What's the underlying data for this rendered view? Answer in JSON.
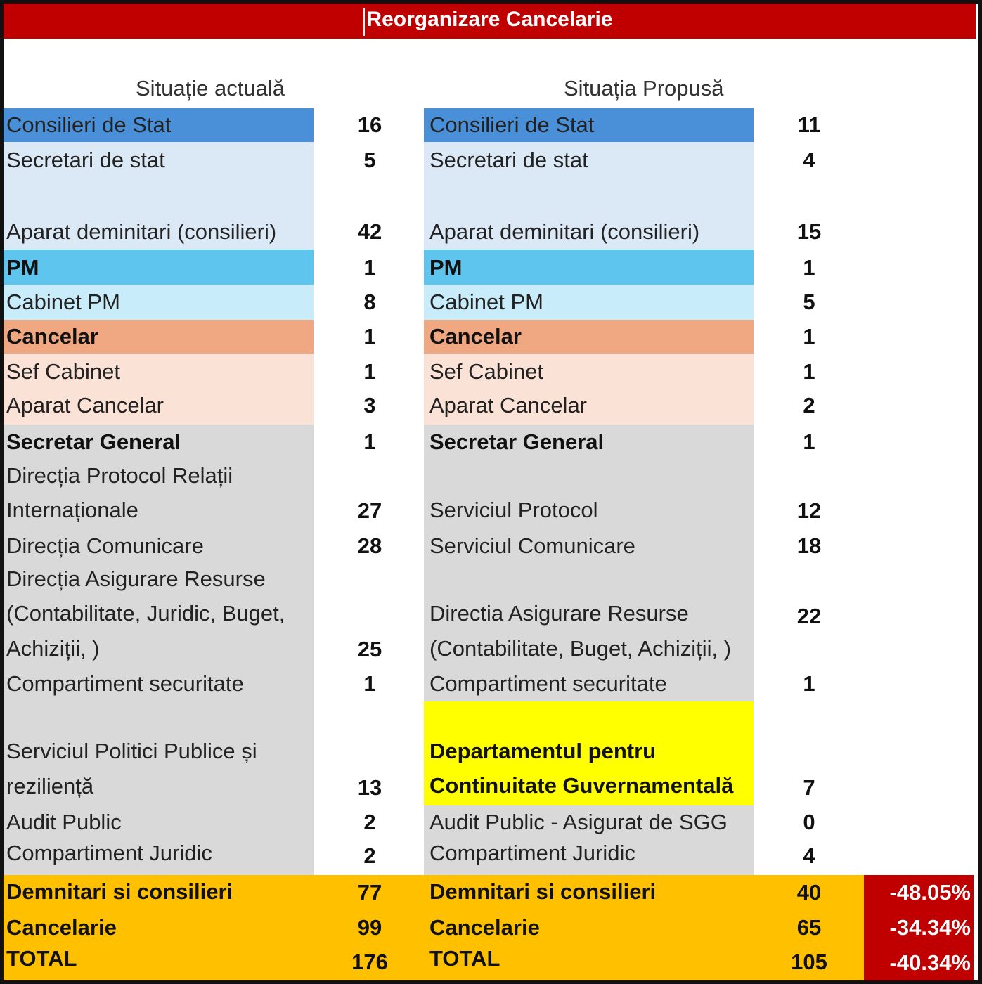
{
  "title": "Reorganizare Cancelarie",
  "headers": {
    "current": "Situație actuală",
    "proposed": "Situația Propusă"
  },
  "colors": {
    "title_bar": "#c00000",
    "consilieri_de_stat": "#4a90d9",
    "light_blue": "#dbe8f6",
    "pm": "#5ec5ef",
    "cabinet_pm": "#c8ecfa",
    "cancelar": "#f0a882",
    "light_peach": "#fbe2d6",
    "grey": "#d9d9d9",
    "highlight_yellow": "#ffff00",
    "totals_orange": "#ffc000",
    "percent_red": "#c00000"
  },
  "rows": {
    "consilieri_de_stat": {
      "label_current": "Consilieri de Stat",
      "value_current": "16",
      "label_proposed": "Consilieri de Stat",
      "value_proposed": "11"
    },
    "secretari_de_stat": {
      "label_current": "Secretari de stat",
      "value_current": "5",
      "label_proposed": "Secretari de stat",
      "value_proposed": "4"
    },
    "aparat_demnitari": {
      "label_current": "Aparat deminitari (consilieri)",
      "value_current": "42",
      "label_proposed": "Aparat deminitari (consilieri)",
      "value_proposed": "15"
    },
    "pm": {
      "label_current": "PM",
      "value_current": "1",
      "label_proposed": "PM",
      "value_proposed": "1"
    },
    "cabinet_pm": {
      "label_current": "Cabinet PM",
      "value_current": "8",
      "label_proposed": "Cabinet PM",
      "value_proposed": "5"
    },
    "cancelar": {
      "label_current": "Cancelar",
      "value_current": "1",
      "label_proposed": "Cancelar",
      "value_proposed": "1"
    },
    "sef_cabinet": {
      "label_current": "Sef Cabinet",
      "value_current": "1",
      "label_proposed": "Sef Cabinet",
      "value_proposed": "1"
    },
    "aparat_cancelar": {
      "label_current": "Aparat Cancelar",
      "value_current": "3",
      "label_proposed": "Aparat Cancelar",
      "value_proposed": "2"
    },
    "secretar_general": {
      "label_current": "Secretar General",
      "value_current": "1",
      "label_proposed": "Secretar General",
      "value_proposed": "1"
    },
    "protocol": {
      "label_current_1": "Direcția Protocol Relații",
      "label_current_2": "Internaționale",
      "value_current": "27",
      "label_proposed": "Serviciul Protocol",
      "value_proposed": "12"
    },
    "comunicare": {
      "label_current": "Direcția Comunicare",
      "value_current": "28",
      "label_proposed": "Serviciul Comunicare",
      "value_proposed": "18"
    },
    "resurse": {
      "label_current_1": "Direcția Asigurare Resurse",
      "label_current_2": "(Contabilitate, Juridic, Buget,",
      "label_current_3": "Achiziții, )",
      "value_current": "25",
      "label_proposed_1": "Directia Asigurare Resurse",
      "label_proposed_2": "(Contabilitate, Buget, Achiziții, )",
      "value_proposed": "22"
    },
    "securitate": {
      "label_current": "Compartiment securitate",
      "value_current": "1",
      "label_proposed": "Compartiment securitate",
      "value_proposed": "1"
    },
    "politici_publice": {
      "label_current_1": "Serviciul Politici Publice și",
      "label_current_2": "reziliență",
      "value_current": "13",
      "label_proposed_1": "Departamentul pentru",
      "label_proposed_2": "Continuitate Guvernamentală",
      "value_proposed": "7"
    },
    "audit": {
      "label_current": "Audit Public",
      "value_current": "2",
      "label_proposed": "Audit Public - Asigurat de SGG",
      "value_proposed": "0"
    },
    "juridic": {
      "label_current": "Compartiment Juridic",
      "value_current": "2",
      "label_proposed": "Compartiment Juridic",
      "value_proposed": "4"
    }
  },
  "totals": {
    "demnitari": {
      "label_current": "Demnitari si consilieri",
      "value_current": "77",
      "label_proposed": "Demnitari si consilieri",
      "value_proposed": "40",
      "change": "-48.05%"
    },
    "cancelarie": {
      "label_current": "Cancelarie",
      "value_current": "99",
      "label_proposed": "Cancelarie",
      "value_proposed": "65",
      "change": "-34.34%"
    },
    "total": {
      "label_current": "TOTAL",
      "value_current": "176",
      "label_proposed": "TOTAL",
      "value_proposed": "105",
      "change": "-40.34%"
    }
  }
}
